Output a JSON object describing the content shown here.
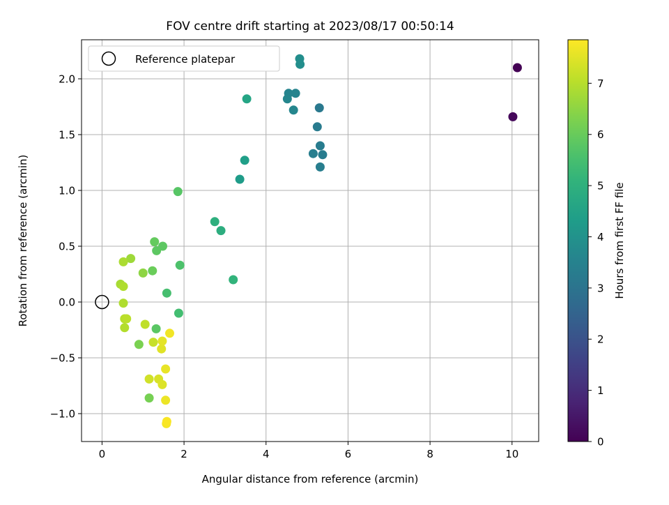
{
  "chart_data": {
    "type": "scatter",
    "title": "FOV centre drift starting at 2023/08/17 00:50:14",
    "xlabel": "Angular distance from reference (arcmin)",
    "ylabel": "Rotation from reference (arcmin)",
    "xlim": [
      -0.5,
      10.65
    ],
    "ylim": [
      -1.25,
      2.35
    ],
    "xticks": [
      0,
      2,
      4,
      6,
      8,
      10
    ],
    "xtick_labels": [
      "0",
      "2",
      "4",
      "6",
      "8",
      "10"
    ],
    "yticks": [
      -1.0,
      -0.5,
      0.0,
      0.5,
      1.0,
      1.5,
      2.0
    ],
    "ytick_labels": [
      "−1.0",
      "−0.5",
      "0.0",
      "0.5",
      "1.0",
      "1.5",
      "2.0"
    ],
    "grid": true,
    "legend": {
      "position": "top-left",
      "entries": [
        "Reference platepar"
      ]
    },
    "colormap": "viridis",
    "colorbar": {
      "label": "Hours from first FF file",
      "range": [
        0,
        7.85
      ],
      "ticks": [
        0,
        1,
        2,
        3,
        4,
        5,
        6,
        7
      ],
      "tick_labels": [
        "0",
        "1",
        "2",
        "3",
        "4",
        "5",
        "6",
        "7"
      ]
    },
    "reference_point": {
      "x": 0,
      "y": 0
    },
    "points": [
      {
        "x": 10.13,
        "y": 2.1,
        "hours": 0.0
      },
      {
        "x": 10.02,
        "y": 1.66,
        "hours": 0.15
      },
      {
        "x": 5.3,
        "y": 1.74,
        "hours": 3.2
      },
      {
        "x": 5.25,
        "y": 1.57,
        "hours": 3.25
      },
      {
        "x": 5.32,
        "y": 1.4,
        "hours": 3.3
      },
      {
        "x": 5.38,
        "y": 1.32,
        "hours": 3.3
      },
      {
        "x": 5.15,
        "y": 1.33,
        "hours": 3.35
      },
      {
        "x": 5.32,
        "y": 1.21,
        "hours": 3.35
      },
      {
        "x": 4.55,
        "y": 1.87,
        "hours": 3.55
      },
      {
        "x": 4.72,
        "y": 1.87,
        "hours": 3.55
      },
      {
        "x": 4.52,
        "y": 1.82,
        "hours": 3.6
      },
      {
        "x": 4.67,
        "y": 1.72,
        "hours": 3.6
      },
      {
        "x": 4.82,
        "y": 2.18,
        "hours": 3.85
      },
      {
        "x": 4.83,
        "y": 2.13,
        "hours": 3.85
      },
      {
        "x": 3.36,
        "y": 1.1,
        "hours": 4.3
      },
      {
        "x": 3.48,
        "y": 1.27,
        "hours": 4.4
      },
      {
        "x": 3.53,
        "y": 1.82,
        "hours": 4.6
      },
      {
        "x": 2.9,
        "y": 0.64,
        "hours": 4.9
      },
      {
        "x": 2.75,
        "y": 0.72,
        "hours": 4.95
      },
      {
        "x": 3.2,
        "y": 0.2,
        "hours": 5.1
      },
      {
        "x": 1.87,
        "y": -0.1,
        "hours": 5.45
      },
      {
        "x": 1.58,
        "y": 0.08,
        "hours": 5.5
      },
      {
        "x": 1.9,
        "y": 0.33,
        "hours": 5.6
      },
      {
        "x": 1.85,
        "y": 0.99,
        "hours": 5.75
      },
      {
        "x": 1.32,
        "y": -0.24,
        "hours": 5.8
      },
      {
        "x": 1.33,
        "y": 0.46,
        "hours": 5.85
      },
      {
        "x": 1.48,
        "y": 0.5,
        "hours": 5.85
      },
      {
        "x": 1.28,
        "y": 0.54,
        "hours": 5.95
      },
      {
        "x": 1.23,
        "y": 0.28,
        "hours": 6.05
      },
      {
        "x": 1.15,
        "y": -0.86,
        "hours": 6.2
      },
      {
        "x": 0.9,
        "y": -0.38,
        "hours": 6.25
      },
      {
        "x": 1.0,
        "y": 0.26,
        "hours": 6.5
      },
      {
        "x": 0.7,
        "y": 0.39,
        "hours": 6.7
      },
      {
        "x": 0.45,
        "y": 0.16,
        "hours": 6.8
      },
      {
        "x": 0.52,
        "y": 0.36,
        "hours": 6.85
      },
      {
        "x": 0.52,
        "y": 0.14,
        "hours": 6.9
      },
      {
        "x": 0.52,
        "y": -0.01,
        "hours": 6.9
      },
      {
        "x": 0.55,
        "y": -0.23,
        "hours": 6.95
      },
      {
        "x": 0.55,
        "y": -0.15,
        "hours": 7.0
      },
      {
        "x": 0.6,
        "y": -0.15,
        "hours": 7.05
      },
      {
        "x": 1.05,
        "y": -0.2,
        "hours": 7.1
      },
      {
        "x": 1.25,
        "y": -0.36,
        "hours": 7.2
      },
      {
        "x": 1.15,
        "y": -0.69,
        "hours": 7.3
      },
      {
        "x": 1.38,
        "y": -0.69,
        "hours": 7.4
      },
      {
        "x": 1.47,
        "y": -0.74,
        "hours": 7.45
      },
      {
        "x": 1.45,
        "y": -0.42,
        "hours": 7.5
      },
      {
        "x": 1.47,
        "y": -0.35,
        "hours": 7.55
      },
      {
        "x": 1.55,
        "y": -0.6,
        "hours": 7.6
      },
      {
        "x": 1.55,
        "y": -0.88,
        "hours": 7.65
      },
      {
        "x": 1.65,
        "y": -0.28,
        "hours": 7.7
      },
      {
        "x": 1.57,
        "y": -1.09,
        "hours": 7.75
      },
      {
        "x": 1.58,
        "y": -1.07,
        "hours": 7.8
      }
    ]
  }
}
